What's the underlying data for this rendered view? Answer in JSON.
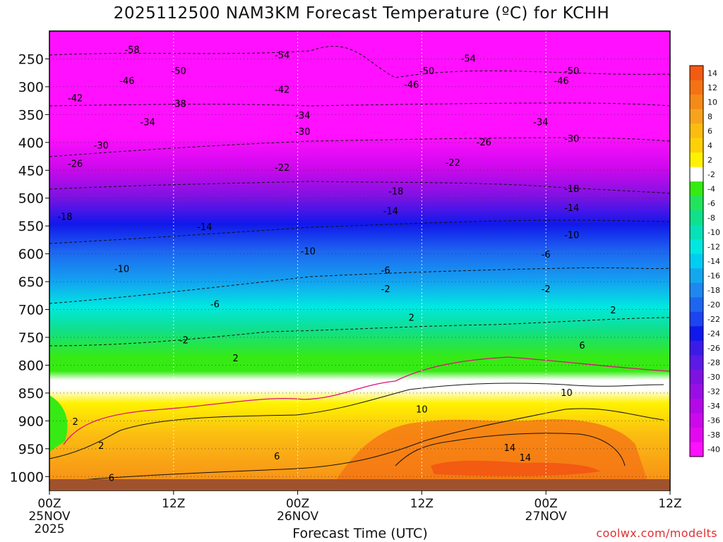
{
  "chart_data": {
    "type": "heatmap",
    "title": "2025112500 NAM3KM Forecast Temperature (ºC) for KCHH",
    "xlabel": "Forecast Time (UTC)",
    "ylabel": "",
    "x_ticks": [
      {
        "hour": 0,
        "label": "00Z",
        "sub1": "25NOV",
        "sub2": "2025"
      },
      {
        "hour": 12,
        "label": "12Z",
        "sub1": "",
        "sub2": ""
      },
      {
        "hour": 24,
        "label": "00Z",
        "sub1": "26NOV",
        "sub2": ""
      },
      {
        "hour": 36,
        "label": "12Z",
        "sub1": "",
        "sub2": ""
      },
      {
        "hour": 48,
        "label": "00Z",
        "sub1": "27NOV",
        "sub2": ""
      },
      {
        "hour": 60,
        "label": "12Z",
        "sub1": "",
        "sub2": ""
      }
    ],
    "x_range_hours": [
      0,
      60
    ],
    "y_ticks_hpa": [
      250,
      300,
      350,
      400,
      450,
      500,
      550,
      600,
      650,
      700,
      750,
      800,
      850,
      900,
      950,
      1000
    ],
    "y_range_hpa": [
      1025,
      200
    ],
    "colorbar_labels": [
      14,
      12,
      10,
      8,
      6,
      4,
      2,
      -2,
      -4,
      -6,
      -8,
      -10,
      -12,
      -14,
      -16,
      -18,
      -20,
      -22,
      -24,
      -26,
      -28,
      -30,
      -32,
      -34,
      -36,
      -38,
      -40
    ],
    "colorbar_colors": [
      "#f35a12",
      "#f47214",
      "#f68a18",
      "#f8a31c",
      "#fbbc12",
      "#fdd108",
      "#fff200",
      "#ffffff",
      "#36ea14",
      "#22e45c",
      "#10df8c",
      "#06e1b8",
      "#00e8e0",
      "#00cdf2",
      "#12a8f0",
      "#1e88f0",
      "#1e66f0",
      "#1c44f0",
      "#1018ec",
      "#3c1ae8",
      "#5c1ae6",
      "#7e12e2",
      "#9a0ee6",
      "#b408e8",
      "#cc08ec",
      "#e408f0",
      "#ff10ff"
    ],
    "contour_labels": [
      {
        "h": 8.0,
        "p": 234,
        "v": "-58"
      },
      {
        "h": 22.5,
        "p": 244,
        "v": "-54"
      },
      {
        "h": 40.5,
        "p": 250,
        "v": "-54"
      },
      {
        "h": 12.5,
        "p": 272,
        "v": "-50"
      },
      {
        "h": 36.5,
        "p": 272,
        "v": "-50"
      },
      {
        "h": 50.5,
        "p": 272,
        "v": "-50"
      },
      {
        "h": 7.5,
        "p": 290,
        "v": "-46"
      },
      {
        "h": 35.0,
        "p": 297,
        "v": "-46"
      },
      {
        "h": 49.5,
        "p": 290,
        "v": "-46"
      },
      {
        "h": 22.5,
        "p": 306,
        "v": "-42"
      },
      {
        "h": 2.5,
        "p": 321,
        "v": "-42"
      },
      {
        "h": 12.5,
        "p": 331,
        "v": "-38"
      },
      {
        "h": 9.5,
        "p": 364,
        "v": "-34"
      },
      {
        "h": 24.5,
        "p": 352,
        "v": "-34"
      },
      {
        "h": 47.5,
        "p": 364,
        "v": "-34"
      },
      {
        "h": 5.0,
        "p": 406,
        "v": "-30"
      },
      {
        "h": 24.5,
        "p": 381,
        "v": "-30"
      },
      {
        "h": 50.5,
        "p": 394,
        "v": "-30"
      },
      {
        "h": 2.5,
        "p": 439,
        "v": "-26"
      },
      {
        "h": 42.0,
        "p": 400,
        "v": "-26"
      },
      {
        "h": 22.5,
        "p": 446,
        "v": "-22"
      },
      {
        "h": 39.0,
        "p": 437,
        "v": "-22"
      },
      {
        "h": 33.5,
        "p": 488,
        "v": "-18"
      },
      {
        "h": 50.5,
        "p": 484,
        "v": "-18"
      },
      {
        "h": 1.5,
        "p": 534,
        "v": "-18"
      },
      {
        "h": 33.0,
        "p": 524,
        "v": "-14"
      },
      {
        "h": 50.5,
        "p": 518,
        "v": "-14"
      },
      {
        "h": 15.0,
        "p": 552,
        "v": "-14"
      },
      {
        "h": 50.5,
        "p": 567,
        "v": "-10"
      },
      {
        "h": 25.0,
        "p": 596,
        "v": "-10"
      },
      {
        "h": 7.0,
        "p": 628,
        "v": "-10"
      },
      {
        "h": 32.5,
        "p": 630,
        "v": "-6"
      },
      {
        "h": 48.0,
        "p": 602,
        "v": "-6"
      },
      {
        "h": 16.0,
        "p": 691,
        "v": "-6"
      },
      {
        "h": 32.5,
        "p": 664,
        "v": "-2"
      },
      {
        "h": 48.0,
        "p": 664,
        "v": "-2"
      },
      {
        "h": 13.0,
        "p": 756,
        "v": "-2"
      },
      {
        "h": 35.0,
        "p": 715,
        "v": "2"
      },
      {
        "h": 54.5,
        "p": 702,
        "v": "2"
      },
      {
        "h": 18.0,
        "p": 788,
        "v": "2"
      },
      {
        "h": 2.5,
        "p": 902,
        "v": "2"
      },
      {
        "h": 5.0,
        "p": 945,
        "v": "2"
      },
      {
        "h": 51.5,
        "p": 765,
        "v": "6"
      },
      {
        "h": 22.0,
        "p": 964,
        "v": "6"
      },
      {
        "h": 6.0,
        "p": 1003,
        "v": "6"
      },
      {
        "h": 36.0,
        "p": 880,
        "v": "10"
      },
      {
        "h": 50.0,
        "p": 850,
        "v": "10"
      },
      {
        "h": 44.5,
        "p": 949,
        "v": "14"
      },
      {
        "h": 46.0,
        "p": 967,
        "v": "14"
      }
    ]
  },
  "watermark": "coolwx.com/modelts"
}
